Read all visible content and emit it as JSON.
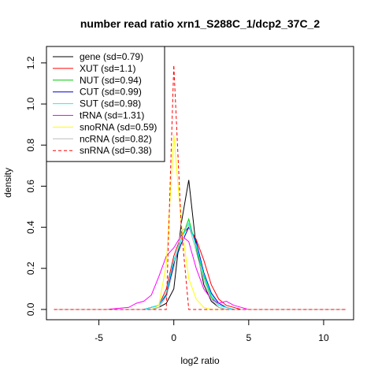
{
  "chart_data": {
    "type": "line",
    "title": "number read ratio xrn1_S288C_1/dcp2_37C_2",
    "xlabel": "log2 ratio",
    "ylabel": "density",
    "xlim": [
      -8.5,
      12.0
    ],
    "ylim": [
      -0.05,
      1.28
    ],
    "x_ticks": [
      -5,
      0,
      5,
      10
    ],
    "x_tick_labels": [
      "-5",
      "0",
      "5",
      "10"
    ],
    "y_ticks": [
      0.0,
      0.2,
      0.4,
      0.6,
      0.8,
      1.0,
      1.2
    ],
    "y_tick_labels": [
      "0.0",
      "0.2",
      "0.4",
      "0.6",
      "0.8",
      "1.0",
      "1.2"
    ],
    "grid": false,
    "legend_position": "top-left",
    "x": [
      -8.0,
      -4.5,
      -3.0,
      -2.5,
      -2.0,
      -1.5,
      -1.0,
      -0.5,
      0.0,
      0.5,
      1.0,
      1.5,
      2.0,
      2.5,
      3.0,
      3.5,
      4.0,
      4.5,
      5.0,
      11.5
    ],
    "series": [
      {
        "name": "gene (sd=0.79)",
        "color": "#000000",
        "dash": false,
        "values": [
          0,
          0,
          0,
          0,
          0,
          0,
          0.01,
          0.03,
          0.1,
          0.42,
          0.63,
          0.3,
          0.12,
          0.04,
          0.01,
          0,
          0,
          0,
          0,
          0
        ]
      },
      {
        "name": "XUT (sd=1.1)",
        "color": "#ff0000",
        "dash": false,
        "values": [
          0,
          0,
          0,
          0,
          0,
          0.01,
          0.02,
          0.1,
          0.26,
          0.36,
          0.4,
          0.34,
          0.24,
          0.12,
          0.05,
          0.02,
          0.01,
          0,
          0,
          0
        ]
      },
      {
        "name": "NUT (sd=0.94)",
        "color": "#00cc00",
        "dash": false,
        "values": [
          0,
          0,
          0,
          0,
          0,
          0.01,
          0.02,
          0.08,
          0.22,
          0.34,
          0.44,
          0.3,
          0.16,
          0.06,
          0.02,
          0.01,
          0,
          0,
          0,
          0
        ]
      },
      {
        "name": "CUT (sd=0.99)",
        "color": "#0000cc",
        "dash": false,
        "values": [
          0,
          0,
          0,
          0,
          0,
          0.01,
          0.02,
          0.07,
          0.22,
          0.32,
          0.4,
          0.33,
          0.18,
          0.08,
          0.03,
          0.01,
          0,
          0,
          0,
          0
        ]
      },
      {
        "name": "SUT (sd=0.98)",
        "color": "#00ffff",
        "dash": false,
        "values": [
          0,
          0,
          0,
          0,
          0,
          0.01,
          0.02,
          0.08,
          0.24,
          0.34,
          0.42,
          0.31,
          0.17,
          0.07,
          0.02,
          0.01,
          0,
          0,
          0,
          0
        ]
      },
      {
        "name": "tRNA (sd=1.31)",
        "color": "#ff00ff",
        "dash": false,
        "values": [
          0,
          0,
          0.01,
          0.03,
          0.04,
          0.07,
          0.16,
          0.26,
          0.3,
          0.36,
          0.33,
          0.2,
          0.1,
          0.05,
          0.03,
          0.04,
          0.02,
          0.01,
          0,
          0
        ]
      },
      {
        "name": "snoRNA (sd=0.59)",
        "color": "#ffff00",
        "dash": false,
        "values": [
          0,
          0,
          0,
          0,
          0,
          0,
          0.02,
          0.22,
          0.85,
          0.42,
          0.15,
          0.05,
          0.01,
          0,
          0,
          0,
          0,
          0,
          0,
          0
        ]
      },
      {
        "name": "ncRNA (sd=0.82)",
        "color": "#bebebe",
        "dash": false,
        "values": [
          0,
          0,
          0,
          0,
          0,
          0,
          0.01,
          0.06,
          0.2,
          0.38,
          0.41,
          0.28,
          0.14,
          0.05,
          0.01,
          0,
          0,
          0,
          0,
          0
        ]
      },
      {
        "name": "snRNA (sd=0.38)",
        "color": "#ff0000",
        "dash": true,
        "values": [
          0,
          0,
          0,
          0,
          0,
          0,
          0,
          0.0,
          1.19,
          0.4,
          0.0,
          0,
          0,
          0,
          0,
          0,
          0,
          0,
          0,
          0
        ]
      }
    ]
  }
}
